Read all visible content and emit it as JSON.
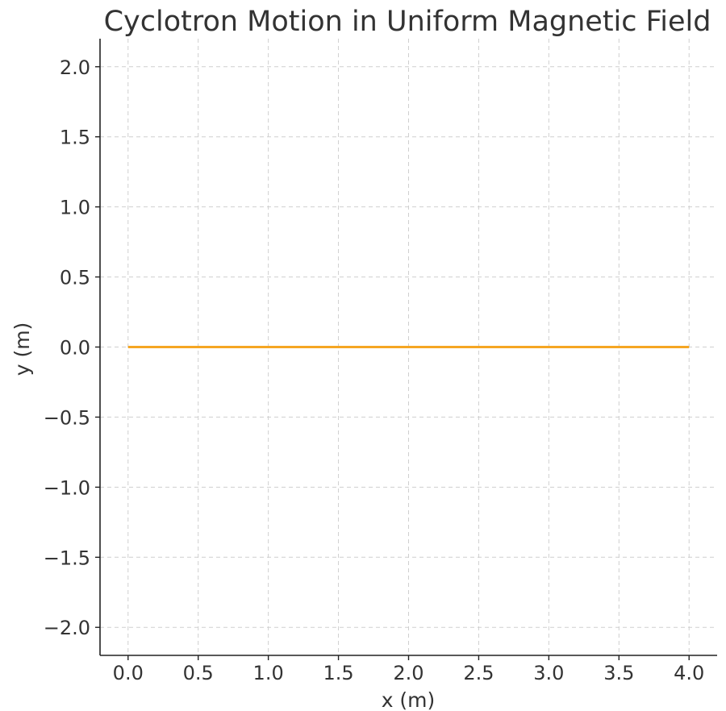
{
  "chart_data": {
    "type": "line",
    "title": "Cyclotron Motion in Uniform Magnetic Field",
    "xlabel": "x (m)",
    "ylabel": "y (m)",
    "xlim": [
      -0.2,
      4.2
    ],
    "ylim": [
      -2.2,
      2.2
    ],
    "x_ticks": [
      0.0,
      0.5,
      1.0,
      1.5,
      2.0,
      2.5,
      3.0,
      3.5,
      4.0
    ],
    "y_ticks": [
      -2.0,
      -1.5,
      -1.0,
      -0.5,
      0.0,
      0.5,
      1.0,
      1.5,
      2.0
    ],
    "x_tick_labels": [
      "0.0",
      "0.5",
      "1.0",
      "1.5",
      "2.0",
      "2.5",
      "3.0",
      "3.5",
      "4.0"
    ],
    "y_tick_labels": [
      "−2.0",
      "−1.5",
      "−1.0",
      "−0.5",
      "0.0",
      "0.5",
      "1.0",
      "1.5",
      "2.0"
    ],
    "grid": true,
    "series": [
      {
        "color": "#f5a623",
        "x": [
          0.0,
          4.0
        ],
        "y": [
          0.0,
          0.0
        ]
      }
    ]
  }
}
